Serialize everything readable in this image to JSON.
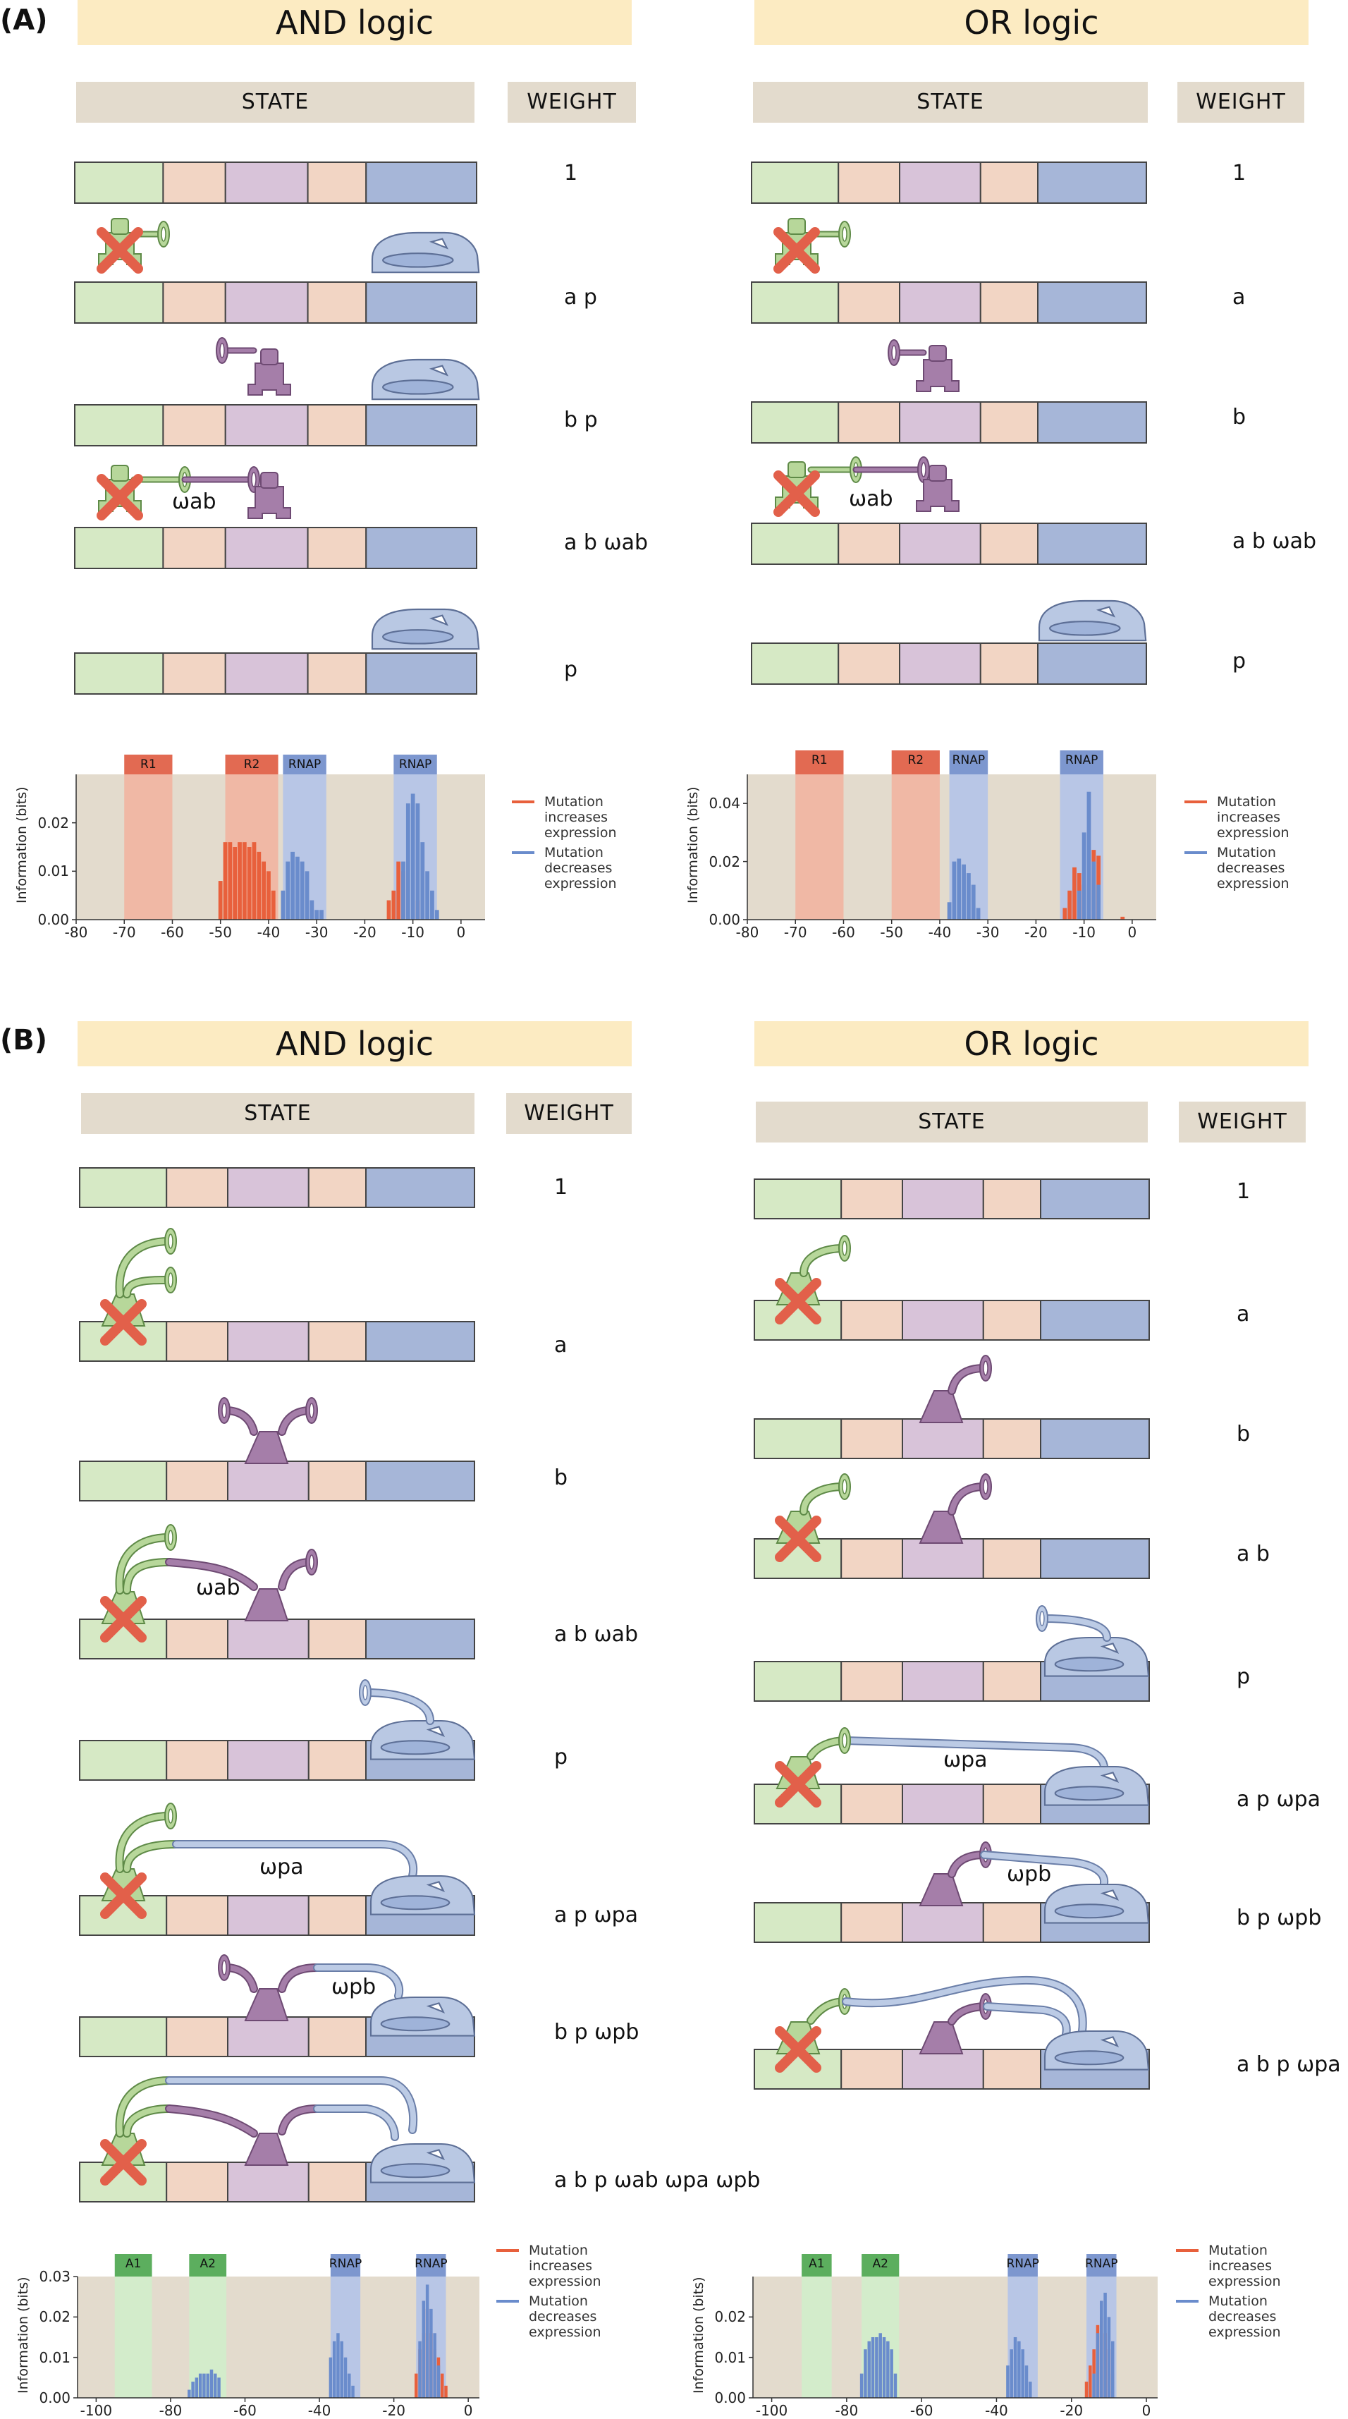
{
  "panels": {
    "A": {
      "label": "(A)"
    },
    "B": {
      "label": "(B)"
    }
  },
  "titles": {
    "and": "AND logic",
    "or": "OR logic"
  },
  "headers": {
    "state": "STATE",
    "weight": "WEIGHT"
  },
  "legend": {
    "increase": "Mutation increases expression",
    "decrease": "Mutation decreases expression"
  },
  "labels": {
    "omega_ab": "ωab",
    "omega_pa": "ωpa",
    "omega_pb": "ωpb"
  },
  "weights": {
    "A_and": [
      "1",
      "a p",
      "b p",
      "a b ωab",
      "p"
    ],
    "A_or": [
      "1",
      "a",
      "b",
      "a b ωab",
      "p"
    ],
    "B_and": [
      "1",
      "a",
      "b",
      "a b ωab",
      "p",
      "a p ωpa",
      "b p ωpb",
      "a b p ωab ωpa ωpb"
    ],
    "B_or": [
      "1",
      "a",
      "b",
      "a b",
      "p",
      "a p ωpa",
      "b p ωpb",
      "a b p ωpa ωpb"
    ]
  },
  "colors": {
    "green": "#d6e9c5",
    "salmon": "#f2d5c4",
    "purple": "#d8c3d9",
    "blue": "#a6b6d8",
    "red_bar": "#e8603c",
    "blue_bar": "#6a8ccc",
    "site_red": "#e26a52",
    "site_blue": "#7d97cf",
    "site_green": "#5cae5e"
  },
  "chart_data": [
    {
      "id": "A_and",
      "type": "bar",
      "ylabel": "Information (bits)",
      "xlim": [
        -80,
        5
      ],
      "ylim": [
        0,
        0.03
      ],
      "xticks": [
        -80,
        -70,
        -60,
        -50,
        -40,
        -30,
        -20,
        -10,
        0
      ],
      "yticks": [
        0.0,
        0.01,
        0.02
      ],
      "sites": [
        {
          "name": "R1",
          "from": -70,
          "to": -60,
          "color": "red"
        },
        {
          "name": "R2",
          "from": -49,
          "to": -38,
          "color": "red"
        },
        {
          "name": "RNAP",
          "from": -37,
          "to": -28,
          "color": "blue"
        },
        {
          "name": "RNAP",
          "from": -14,
          "to": -5,
          "color": "blue"
        }
      ],
      "increase": [
        [
          -50,
          0.008
        ],
        [
          -49,
          0.016
        ],
        [
          -48,
          0.016
        ],
        [
          -47,
          0.015
        ],
        [
          -46,
          0.016
        ],
        [
          -45,
          0.016
        ],
        [
          -44,
          0.015
        ],
        [
          -43,
          0.016
        ],
        [
          -42,
          0.014
        ],
        [
          -41,
          0.012
        ],
        [
          -40,
          0.01
        ],
        [
          -39,
          0.006
        ],
        [
          -15,
          0.004
        ],
        [
          -14,
          0.006
        ],
        [
          -13,
          0.012
        ],
        [
          -12,
          0.01
        ],
        [
          -9,
          0.004
        ]
      ],
      "decrease": [
        [
          -37,
          0.006
        ],
        [
          -36,
          0.012
        ],
        [
          -35,
          0.014
        ],
        [
          -34,
          0.013
        ],
        [
          -33,
          0.012
        ],
        [
          -32,
          0.01
        ],
        [
          -31,
          0.004
        ],
        [
          -30,
          0.002
        ],
        [
          -29,
          0.002
        ],
        [
          -12,
          0.012
        ],
        [
          -11,
          0.024
        ],
        [
          -10,
          0.026
        ],
        [
          -9,
          0.024
        ],
        [
          -8,
          0.016
        ],
        [
          -7,
          0.01
        ],
        [
          -6,
          0.006
        ],
        [
          -5,
          0.002
        ]
      ]
    },
    {
      "id": "A_or",
      "type": "bar",
      "ylabel": "Information (bits)",
      "xlim": [
        -80,
        5
      ],
      "ylim": [
        0,
        0.05
      ],
      "xticks": [
        -80,
        -70,
        -60,
        -50,
        -40,
        -30,
        -20,
        -10,
        0
      ],
      "yticks": [
        0.0,
        0.02,
        0.04
      ],
      "sites": [
        {
          "name": "R1",
          "from": -70,
          "to": -60,
          "color": "red"
        },
        {
          "name": "R2",
          "from": -50,
          "to": -40,
          "color": "red"
        },
        {
          "name": "RNAP",
          "from": -38,
          "to": -30,
          "color": "blue"
        },
        {
          "name": "RNAP",
          "from": -15,
          "to": -6,
          "color": "blue"
        }
      ],
      "increase": [
        [
          -14,
          0.004
        ],
        [
          -13,
          0.01
        ],
        [
          -12,
          0.018
        ],
        [
          -11,
          0.016
        ],
        [
          -10,
          0.012
        ],
        [
          -8,
          0.024
        ],
        [
          -7,
          0.022
        ],
        [
          -2,
          0.001
        ]
      ],
      "decrease": [
        [
          -38,
          0.006
        ],
        [
          -37,
          0.02
        ],
        [
          -36,
          0.021
        ],
        [
          -35,
          0.019
        ],
        [
          -34,
          0.016
        ],
        [
          -33,
          0.012
        ],
        [
          -32,
          0.004
        ],
        [
          -11,
          0.01
        ],
        [
          -10,
          0.03
        ],
        [
          -9,
          0.044
        ],
        [
          -8,
          0.02
        ],
        [
          -7,
          0.012
        ]
      ]
    },
    {
      "id": "B_and",
      "type": "bar",
      "ylabel": "Information (bits)",
      "xlim": [
        -105,
        3
      ],
      "ylim": [
        0,
        0.03
      ],
      "xticks": [
        -100,
        -80,
        -60,
        -40,
        -20,
        0
      ],
      "yticks": [
        0.0,
        0.01,
        0.02,
        0.03
      ],
      "sites": [
        {
          "name": "A1",
          "from": -95,
          "to": -85,
          "color": "green"
        },
        {
          "name": "A2",
          "from": -75,
          "to": -65,
          "color": "green"
        },
        {
          "name": "RNAP",
          "from": -37,
          "to": -29,
          "color": "blue"
        },
        {
          "name": "RNAP",
          "from": -14,
          "to": -6,
          "color": "blue"
        }
      ],
      "increase": [
        [
          -14,
          0.006
        ],
        [
          -13,
          0.012
        ],
        [
          -12,
          0.016
        ],
        [
          -11,
          0.022
        ],
        [
          -10,
          0.016
        ],
        [
          -9,
          0.012
        ],
        [
          -8,
          0.01
        ],
        [
          -7,
          0.006
        ],
        [
          -6,
          0.003
        ]
      ],
      "decrease": [
        [
          -75,
          0.002
        ],
        [
          -74,
          0.004
        ],
        [
          -73,
          0.005
        ],
        [
          -72,
          0.006
        ],
        [
          -71,
          0.006
        ],
        [
          -70,
          0.006
        ],
        [
          -69,
          0.007
        ],
        [
          -68,
          0.006
        ],
        [
          -67,
          0.005
        ],
        [
          -37,
          0.01
        ],
        [
          -36,
          0.014
        ],
        [
          -35,
          0.016
        ],
        [
          -34,
          0.014
        ],
        [
          -33,
          0.01
        ],
        [
          -32,
          0.006
        ],
        [
          -31,
          0.003
        ],
        [
          -13,
          0.014
        ],
        [
          -12,
          0.024
        ],
        [
          -11,
          0.028
        ],
        [
          -10,
          0.022
        ],
        [
          -9,
          0.016
        ],
        [
          -8,
          0.008
        ]
      ]
    },
    {
      "id": "B_or",
      "type": "bar",
      "ylabel": "Information (bits)",
      "xlim": [
        -105,
        3
      ],
      "ylim": [
        0,
        0.03
      ],
      "xticks": [
        -100,
        -80,
        -60,
        -40,
        -20,
        0
      ],
      "yticks": [
        0.0,
        0.01,
        0.02
      ],
      "sites": [
        {
          "name": "A1",
          "from": -92,
          "to": -84,
          "color": "green"
        },
        {
          "name": "A2",
          "from": -76,
          "to": -66,
          "color": "green"
        },
        {
          "name": "RNAP",
          "from": -37,
          "to": -29,
          "color": "blue"
        },
        {
          "name": "RNAP",
          "from": -16,
          "to": -8,
          "color": "blue"
        }
      ],
      "increase": [
        [
          -16,
          0.004
        ],
        [
          -15,
          0.008
        ],
        [
          -14,
          0.012
        ],
        [
          -13,
          0.018
        ],
        [
          -12,
          0.02
        ],
        [
          -11,
          0.016
        ],
        [
          -10,
          0.012
        ],
        [
          -9,
          0.006
        ]
      ],
      "decrease": [
        [
          -76,
          0.006
        ],
        [
          -75,
          0.012
        ],
        [
          -74,
          0.014
        ],
        [
          -73,
          0.015
        ],
        [
          -72,
          0.015
        ],
        [
          -71,
          0.016
        ],
        [
          -70,
          0.015
        ],
        [
          -69,
          0.014
        ],
        [
          -68,
          0.012
        ],
        [
          -67,
          0.006
        ],
        [
          -37,
          0.008
        ],
        [
          -36,
          0.012
        ],
        [
          -35,
          0.015
        ],
        [
          -34,
          0.014
        ],
        [
          -33,
          0.012
        ],
        [
          -32,
          0.008
        ],
        [
          -31,
          0.004
        ],
        [
          -14,
          0.006
        ],
        [
          -13,
          0.016
        ],
        [
          -12,
          0.024
        ],
        [
          -11,
          0.026
        ],
        [
          -10,
          0.02
        ],
        [
          -9,
          0.014
        ]
      ]
    }
  ]
}
